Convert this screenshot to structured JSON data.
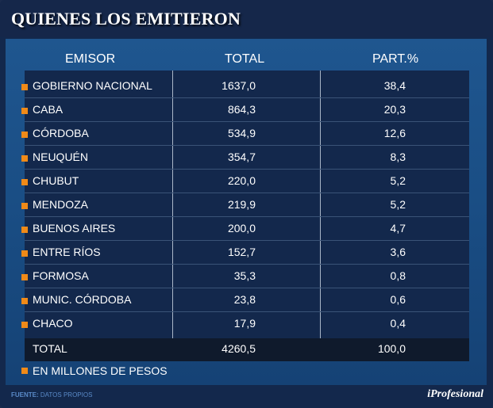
{
  "title": "QUIENES LOS EMITIERON",
  "headers": {
    "emisor": "EMISOR",
    "total": "TOTAL",
    "part": "PART.%"
  },
  "chart_data": {
    "type": "table",
    "title": "QUIENES LOS EMITIERON",
    "columns": [
      "EMISOR",
      "TOTAL",
      "PART.%"
    ],
    "rows": [
      {
        "emisor": "GOBIERNO NACIONAL",
        "total": "1637,0",
        "part": "38,4"
      },
      {
        "emisor": "CABA",
        "total": "864,3",
        "part": "20,3"
      },
      {
        "emisor": "CÓRDOBA",
        "total": "534,9",
        "part": "12,6"
      },
      {
        "emisor": "NEUQUÉN",
        "total": "354,7",
        "part": "8,3"
      },
      {
        "emisor": "CHUBUT",
        "total": "220,0",
        "part": "5,2"
      },
      {
        "emisor": "MENDOZA",
        "total": "219,9",
        "part": "5,2"
      },
      {
        "emisor": "BUENOS AIRES",
        "total": "200,0",
        "part": "4,7"
      },
      {
        "emisor": "ENTRE RÍOS",
        "total": "152,7",
        "part": "3,6"
      },
      {
        "emisor": "FORMOSA",
        "total": "35,3",
        "part": "0,8"
      },
      {
        "emisor": "MUNIC. CÓRDOBA",
        "total": "23,8",
        "part": "0,6"
      },
      {
        "emisor": "CHACO",
        "total": "17,9",
        "part": "0,4"
      }
    ],
    "total_row": {
      "emisor": "TOTAL",
      "total": "4260,5",
      "part": "100,0"
    }
  },
  "note": "EN MILLONES DE PESOS",
  "source": {
    "label": "FUENTE:",
    "text": "DATOS PROPIOS"
  },
  "logo": "iProfesional",
  "colors": {
    "background": "#13284c",
    "panel": "#1d5289",
    "table": "#13284c",
    "total_row": "#0f1a2c",
    "bullet": "#f08a18",
    "source_text": "#5a8ac8"
  }
}
